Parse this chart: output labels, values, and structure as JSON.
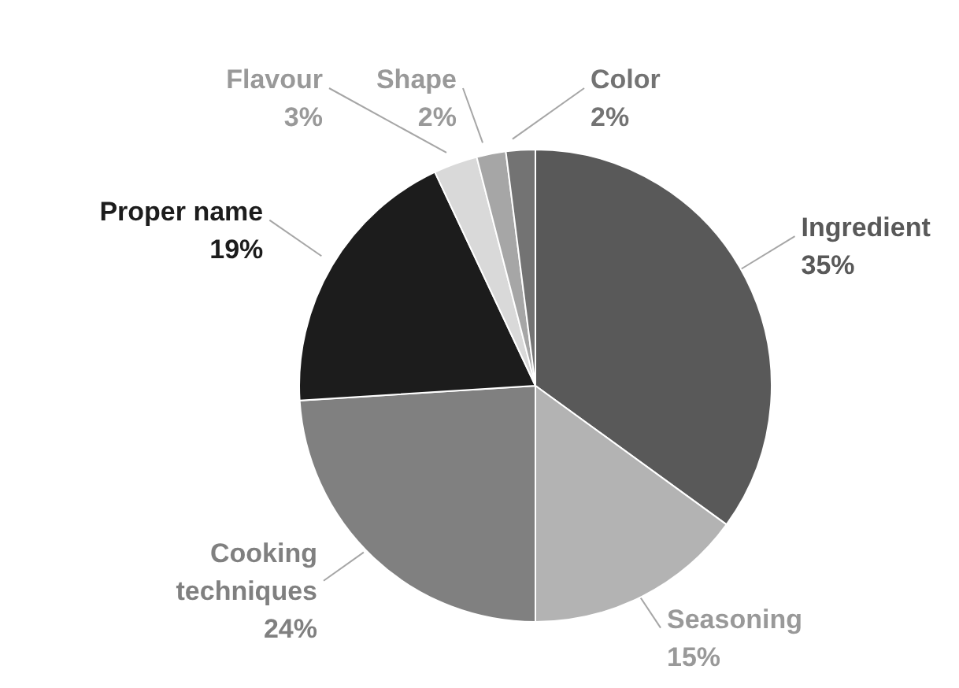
{
  "chart_data": {
    "type": "pie",
    "categories": [
      "Ingredient",
      "Seasoning",
      "Cooking techniques",
      "Proper name",
      "Flavour",
      "Shape",
      "Color"
    ],
    "values": [
      35,
      15,
      24,
      19,
      3,
      2,
      2
    ],
    "colors": [
      "#595959",
      "#b3b3b3",
      "#808080",
      "#1c1c1c",
      "#d9d9d9",
      "#a6a6a6",
      "#737373"
    ],
    "value_labels": [
      "35%",
      "15%",
      "24%",
      "19%",
      "3%",
      "2%",
      "2%"
    ]
  }
}
